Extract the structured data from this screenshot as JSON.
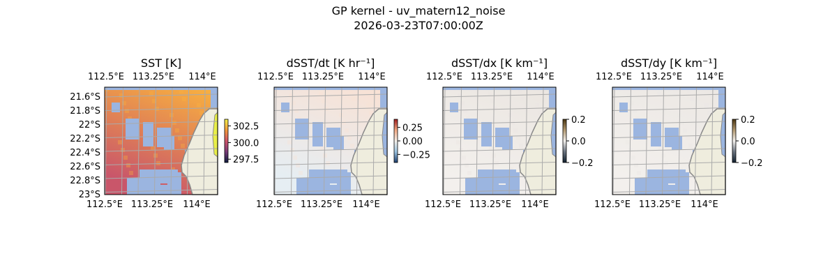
{
  "chart_data": {
    "type": "heatmap",
    "title": "GP kernel - uv_matern12_noise",
    "subtitle": "2026-03-23T07:00:00Z",
    "lon_ticks": [
      "112.5°E",
      "113.25°E",
      "114°E"
    ],
    "lat_ticks": [
      "21.6°S",
      "21.8°S",
      "22°S",
      "22.2°S",
      "22.4°S",
      "22.6°S",
      "22.8°S",
      "23°S"
    ],
    "panels": [
      {
        "title": "SST [K]",
        "colormap": "plasma-like",
        "colorbar_ticks": [
          "302.5",
          "300.0",
          "297.5"
        ],
        "colorbar_range": [
          297,
          303.5
        ],
        "colors": [
          "#0d1b3e",
          "#7a3b78",
          "#d0546a",
          "#f59a3a",
          "#f4f04a"
        ],
        "field_low": "#c9566a",
        "field_high": "#f9b13f",
        "show_lat_labels": true
      },
      {
        "title": "dSST/dt [K hr⁻¹]",
        "colormap": "diverging",
        "colorbar_ticks": [
          "0.25",
          "0.00",
          "−0.25"
        ],
        "colorbar_range": [
          -0.4,
          0.4
        ],
        "colors": [
          "#1c3d6e",
          "#9cc4e0",
          "#f5f0ea",
          "#f2a883",
          "#9e1f1f"
        ],
        "field_low": "#e6eef3",
        "field_high": "#f8e1d4",
        "show_lat_labels": false
      },
      {
        "title": "dSST/dx [K km⁻¹]",
        "colormap": "grey-brown",
        "colorbar_ticks": [
          "0.2",
          "0.0",
          "−0.2"
        ],
        "colorbar_range": [
          -0.2,
          0.2
        ],
        "colors": [
          "#10202e",
          "#6b7480",
          "#f4f1ee",
          "#b39a72",
          "#4a3510"
        ],
        "field_low": "#f3f0ed",
        "field_high": "#ebe6e1",
        "show_lat_labels": false
      },
      {
        "title": "dSST/dy [K km⁻¹]",
        "colormap": "grey-brown",
        "colorbar_ticks": [
          "0.2",
          "0.0",
          "−0.2"
        ],
        "colorbar_range": [
          -0.2,
          0.2
        ],
        "colors": [
          "#10202e",
          "#6b7480",
          "#f4f1ee",
          "#b39a72",
          "#4a3510"
        ],
        "field_low": "#f3f0ed",
        "field_high": "#ece8e4",
        "show_lat_labels": false
      }
    ],
    "mask_color": "#9bb5e0",
    "land_color": "#efedde"
  }
}
